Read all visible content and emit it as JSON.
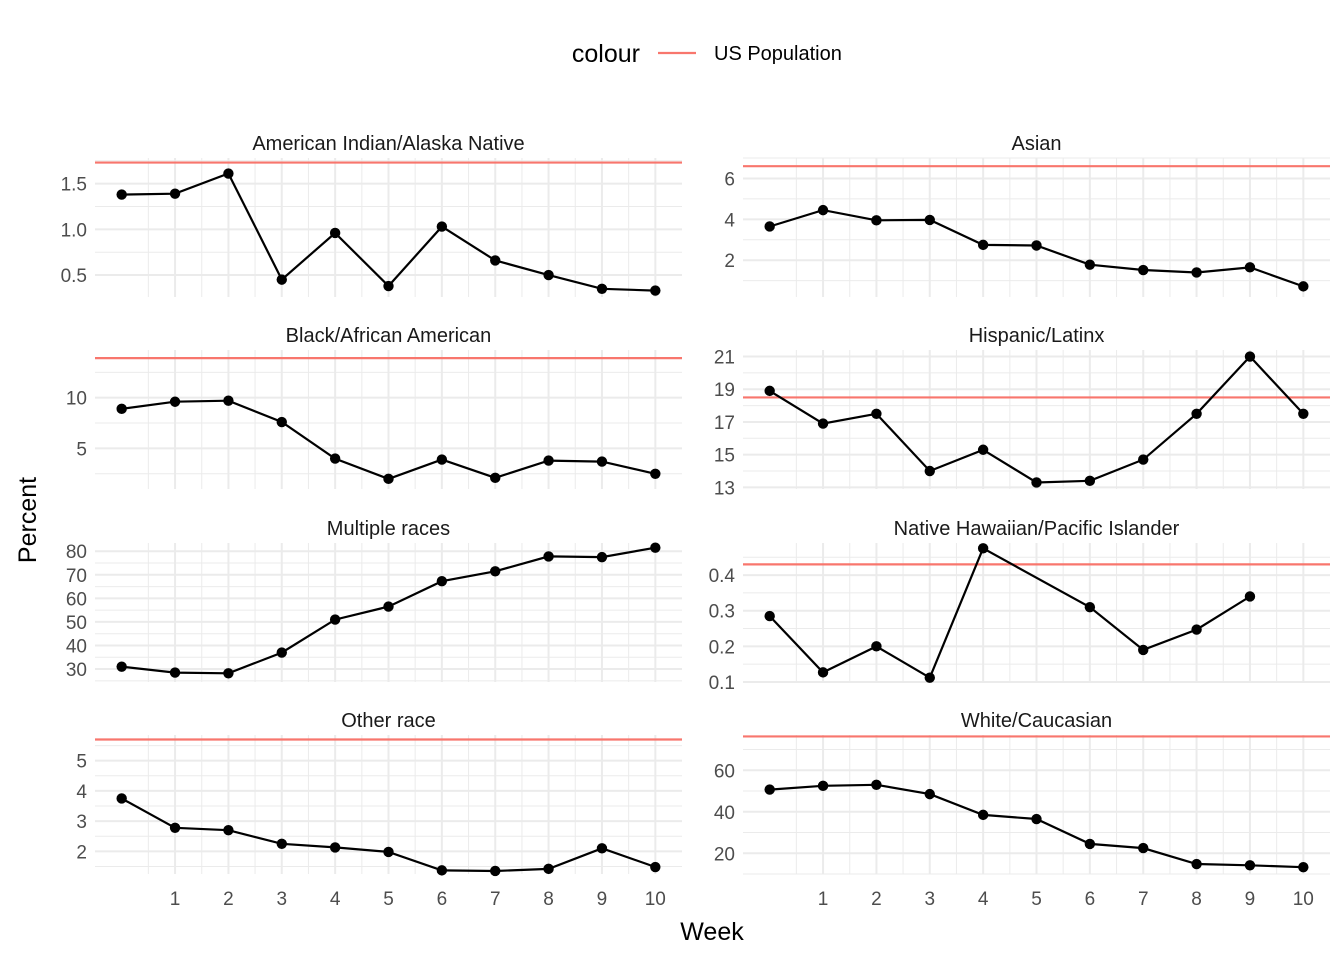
{
  "chart_data": {
    "type": "line",
    "facet": "wrap",
    "columns": 2,
    "xlabel": "Week",
    "ylabel": "Percent",
    "legend": {
      "title": "colour",
      "position": "top",
      "entries": [
        {
          "label": "US Population",
          "color": "#F8766D"
        }
      ]
    },
    "x_ticks": [
      1,
      2,
      3,
      4,
      5,
      6,
      7,
      8,
      9,
      10
    ],
    "xlim": [
      -0.5,
      10.5
    ],
    "series_color": "#000000",
    "panels": [
      {
        "title": "American Indian/Alaska Native",
        "ylim": [
          0.26,
          1.78
        ],
        "yticks": [
          0.5,
          1.0,
          1.5
        ],
        "ytick_labels": [
          "0.5",
          "1.0",
          "1.5"
        ],
        "us_population": 1.73,
        "x": [
          0,
          1,
          2,
          3,
          4,
          5,
          6,
          7,
          8,
          9,
          10
        ],
        "y": [
          1.38,
          1.39,
          1.61,
          0.45,
          0.96,
          0.38,
          1.03,
          0.66,
          0.5,
          0.35,
          0.33
        ]
      },
      {
        "title": "Asian",
        "ylim": [
          0.2,
          7.0
        ],
        "yticks": [
          2,
          4,
          6
        ],
        "ytick_labels": [
          "2",
          "4",
          "6"
        ],
        "us_population": 6.6,
        "x": [
          0,
          1,
          2,
          3,
          4,
          5,
          6,
          7,
          8,
          9,
          10
        ],
        "y": [
          3.65,
          4.45,
          3.95,
          3.97,
          2.75,
          2.72,
          1.78,
          1.52,
          1.4,
          1.65,
          0.72
        ]
      },
      {
        "title": "Black/African American",
        "ylim": [
          1.0,
          14.7
        ],
        "yticks": [
          5,
          10
        ],
        "ytick_labels": [
          "5",
          "10"
        ],
        "us_population": 13.9,
        "x": [
          0,
          1,
          2,
          3,
          4,
          5,
          6,
          7,
          8,
          9,
          10
        ],
        "y": [
          8.9,
          9.6,
          9.7,
          7.6,
          4.0,
          2.0,
          3.9,
          2.1,
          3.8,
          3.7,
          2.5
        ]
      },
      {
        "title": "Hispanic/Latinx",
        "ylim": [
          12.9,
          21.4
        ],
        "yticks": [
          13,
          15,
          17,
          19,
          21
        ],
        "ytick_labels": [
          "13",
          "15",
          "17",
          "19",
          "21"
        ],
        "us_population": 18.5,
        "x": [
          0,
          1,
          2,
          3,
          4,
          5,
          6,
          7,
          8,
          9,
          10
        ],
        "y": [
          18.9,
          16.9,
          17.5,
          14.0,
          15.3,
          13.3,
          13.4,
          14.7,
          17.5,
          21.0,
          17.5
        ]
      },
      {
        "title": "Multiple races",
        "ylim": [
          24.5,
          83.5
        ],
        "yticks": [
          30,
          40,
          50,
          60,
          70,
          80
        ],
        "ytick_labels": [
          "30",
          "40",
          "50",
          "60",
          "70",
          "80"
        ],
        "us_population": null,
        "x": [
          0,
          1,
          2,
          3,
          4,
          5,
          6,
          7,
          8,
          9,
          10
        ],
        "y": [
          31.0,
          28.5,
          28.2,
          37.0,
          51.0,
          56.5,
          67.3,
          71.5,
          77.8,
          77.5,
          81.5
        ]
      },
      {
        "title": "Native Hawaiian/Pacific Islander",
        "ylim": [
          0.1,
          0.49
        ],
        "yticks": [
          0.1,
          0.2,
          0.3,
          0.4
        ],
        "ytick_labels": [
          "0.1",
          "0.2",
          "0.3",
          "0.4"
        ],
        "us_population": 0.43,
        "x": [
          0,
          1,
          2,
          3,
          4,
          6,
          7,
          8,
          9
        ],
        "y": [
          0.285,
          0.127,
          0.2,
          0.112,
          0.475,
          0.31,
          0.19,
          0.247,
          0.34
        ]
      },
      {
        "title": "Other race",
        "ylim": [
          1.25,
          5.85
        ],
        "yticks": [
          2,
          3,
          4,
          5
        ],
        "ytick_labels": [
          "2",
          "3",
          "4",
          "5"
        ],
        "us_population": 5.7,
        "x": [
          0,
          1,
          2,
          3,
          4,
          5,
          6,
          7,
          8,
          9,
          10
        ],
        "y": [
          3.75,
          2.78,
          2.7,
          2.25,
          2.13,
          1.98,
          1.37,
          1.35,
          1.42,
          2.1,
          1.48
        ]
      },
      {
        "title": "White/Caucasian",
        "ylim": [
          10.0,
          77.0
        ],
        "yticks": [
          20,
          40,
          60
        ],
        "ytick_labels": [
          "20",
          "40",
          "60"
        ],
        "us_population": 76.3,
        "x": [
          0,
          1,
          2,
          3,
          4,
          5,
          6,
          7,
          8,
          9,
          10
        ],
        "y": [
          50.7,
          52.5,
          53.0,
          48.5,
          38.5,
          36.5,
          24.5,
          22.5,
          14.8,
          14.2,
          13.3
        ]
      }
    ]
  }
}
